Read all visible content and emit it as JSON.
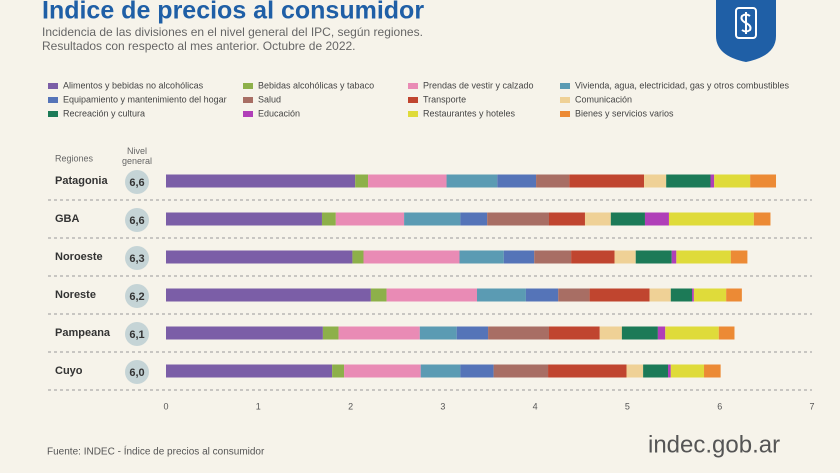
{
  "chart_data": {
    "type": "stacked-bar-horizontal",
    "title": "Indice de precios al consumidor",
    "subtitle": [
      "Incidencia de las divisiones en el nivel general del IPC, según regiones.",
      "Resultados con respecto al mes anterior. Octubre de 2022."
    ],
    "category_header": "Regiones",
    "level_header": "Nivel general",
    "categories": [
      "Patagonia",
      "GBA",
      "Noroeste",
      "Noreste",
      "Pampeana",
      "Cuyo"
    ],
    "general_level": [
      6.6,
      6.6,
      6.3,
      6.2,
      6.1,
      6.0
    ],
    "general_level_labels": [
      "6,6",
      "6,6",
      "6,3",
      "6,2",
      "6,1",
      "6,0"
    ],
    "series": [
      {
        "name": "Alimentos y bebidas no alcohólicas",
        "color": "#7b5ea7",
        "values": [
          2.05,
          1.69,
          2.02,
          2.22,
          1.7,
          1.8
        ]
      },
      {
        "name": "Bebidas alcohólicas y tabaco",
        "color": "#8db04a",
        "values": [
          0.14,
          0.15,
          0.12,
          0.17,
          0.17,
          0.13
        ]
      },
      {
        "name": "Prendas de vestir y calzado",
        "color": "#e98bb5",
        "values": [
          0.85,
          0.74,
          1.04,
          0.98,
          0.88,
          0.83
        ]
      },
      {
        "name": "Vivienda, agua, electricidad, gas y otros combustibles",
        "color": "#5b9bb3",
        "values": [
          0.55,
          0.61,
          0.48,
          0.53,
          0.4,
          0.43
        ]
      },
      {
        "name": "Equipamiento y mantenimiento del hogar",
        "color": "#5574b8",
        "values": [
          0.42,
          0.29,
          0.33,
          0.35,
          0.34,
          0.36
        ]
      },
      {
        "name": "Salud",
        "color": "#a86e64",
        "values": [
          0.36,
          0.67,
          0.4,
          0.34,
          0.66,
          0.59
        ]
      },
      {
        "name": "Transporte",
        "color": "#c0452f",
        "values": [
          0.81,
          0.39,
          0.47,
          0.65,
          0.55,
          0.85
        ]
      },
      {
        "name": "Comunicación",
        "color": "#efd196",
        "values": [
          0.24,
          0.28,
          0.23,
          0.23,
          0.24,
          0.18
        ]
      },
      {
        "name": "Recreación y cultura",
        "color": "#1c7a57",
        "values": [
          0.48,
          0.37,
          0.39,
          0.23,
          0.39,
          0.27
        ]
      },
      {
        "name": "Educación",
        "color": "#b03fb8",
        "values": [
          0.04,
          0.26,
          0.05,
          0.02,
          0.08,
          0.03
        ]
      },
      {
        "name": "Restaurantes y hoteles",
        "color": "#dfdb3a",
        "values": [
          0.39,
          0.92,
          0.59,
          0.35,
          0.58,
          0.36
        ]
      },
      {
        "name": "Bienes y servicios varios",
        "color": "#ec8a35",
        "values": [
          0.28,
          0.18,
          0.18,
          0.17,
          0.17,
          0.18
        ]
      }
    ],
    "xlim": [
      0,
      7
    ],
    "xticks": [
      0,
      1,
      2,
      3,
      4,
      5,
      6,
      7
    ],
    "grid": false,
    "source": "Fuente: INDEC - Índice de precios al consumidor",
    "logo": "indec.gob.ar"
  }
}
